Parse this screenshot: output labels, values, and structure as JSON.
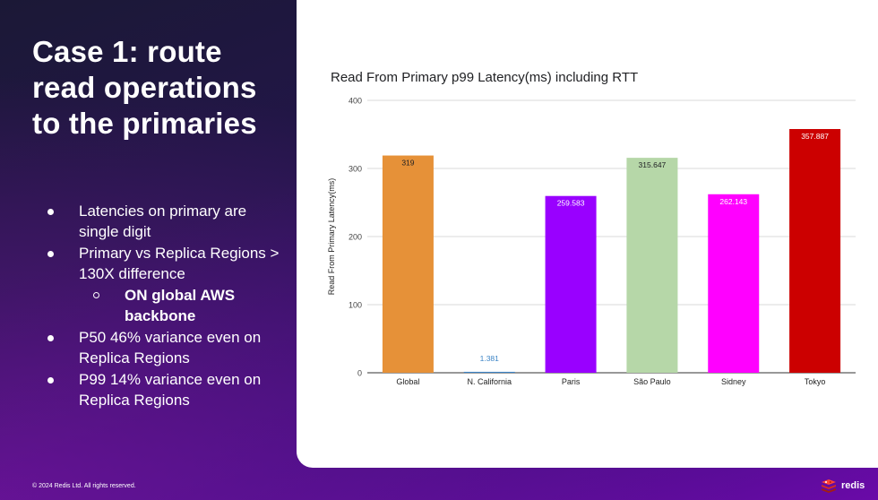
{
  "slide": {
    "title": "Case 1: route\nread operations\nto the primaries",
    "bullets": [
      {
        "text": "Latencies on primary are single digit"
      },
      {
        "text": "Primary vs Replica Regions > 130X difference"
      },
      {
        "text": "ON global AWS backbone",
        "sub": true
      },
      {
        "text": "P50 46% variance even on Replica Regions"
      },
      {
        "text": "P99 14% variance even on Replica Regions"
      }
    ],
    "footer": "© 2024 Redis Ltd. All rights reserved.",
    "logo_text": "redis",
    "icons": {
      "bullet": "filled-circle",
      "sub_bullet": "hollow-circle",
      "logo": "redis-logo-icon"
    }
  },
  "chart_data": {
    "type": "bar",
    "title": "Read From Primary p99 Latency(ms) including RTT",
    "xlabel": "",
    "ylabel": "Read From Primary Latency(ms)",
    "ylim": [
      0,
      400
    ],
    "yticks": [
      0,
      100,
      200,
      300,
      400
    ],
    "grid": true,
    "categories": [
      "Global",
      "N. California",
      "Paris",
      "São Paulo",
      "Sidney",
      "Tokyo"
    ],
    "values": [
      319,
      1.381,
      259.583,
      315.647,
      262.143,
      357.887
    ],
    "data_labels": [
      "319",
      "1.381",
      "259.583",
      "315.647",
      "262.143",
      "357.887"
    ],
    "colors": [
      "#e69138",
      "#3d85c6",
      "#9900ff",
      "#b6d7a8",
      "#ff00ff",
      "#cc0000"
    ],
    "label_colors": [
      "#202124",
      "#3d85c6",
      "#ffffff",
      "#202124",
      "#ffffff",
      "#ffffff"
    ]
  }
}
